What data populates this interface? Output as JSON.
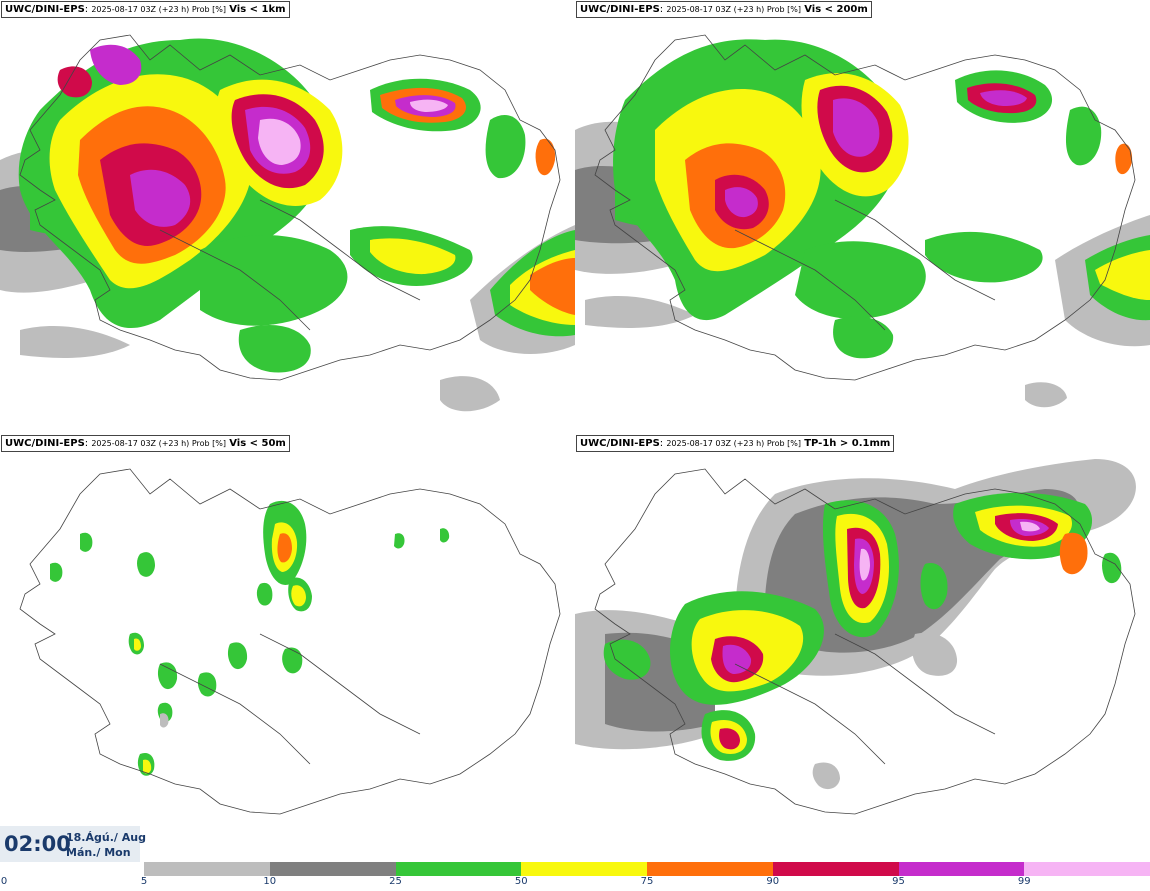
{
  "panels": [
    {
      "id": "vis1km",
      "model": "UWC/DINI-EPS",
      "meta": "2025-08-17 03Z (+23 h) Prob [%]",
      "label": "Vis < 1km"
    },
    {
      "id": "vis200m",
      "model": "UWC/DINI-EPS",
      "meta": "2025-08-17 03Z (+23 h) Prob [%]",
      "label": "Vis < 200m"
    },
    {
      "id": "vis50m",
      "model": "UWC/DINI-EPS",
      "meta": "2025-08-17 03Z (+23 h) Prob [%]",
      "label": "Vis < 50m"
    },
    {
      "id": "tp1h",
      "model": "UWC/DINI-EPS",
      "meta": "2025-08-17 03Z (+23 h) Prob [%]",
      "label": "TP-1h > 0.1mm"
    }
  ],
  "valid_time": {
    "time": "02:00",
    "date": "18.Ágú./ Aug",
    "weekday": "Mán./ Mon"
  },
  "legend": {
    "ticks": [
      "0",
      "5",
      "10",
      "25",
      "50",
      "75",
      "90",
      "95",
      "99"
    ],
    "colors": [
      "#bdbdbd",
      "#7f7f7f",
      "#35c638",
      "#f8f80e",
      "#ff6f0b",
      "#d00a4a",
      "#c52ccc",
      "#f6b4f4"
    ]
  }
}
